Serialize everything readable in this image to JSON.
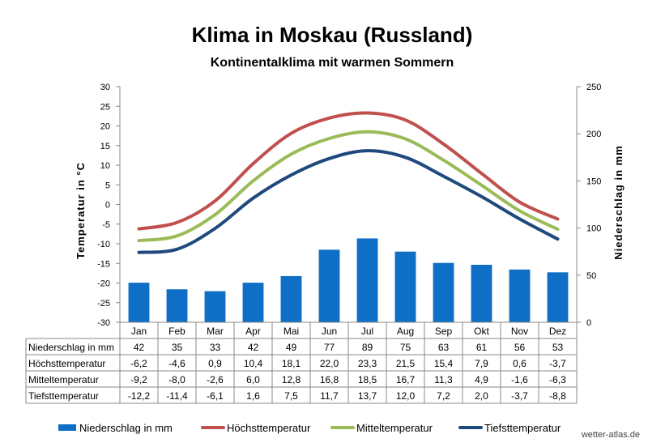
{
  "chart_data": {
    "type": "bar",
    "title": "Klima in Moskau (Russland)",
    "subtitle": "Kontinentalklima mit warmen Sommern",
    "ylabel_left": "Temperatur  in  °C",
    "ylabel_right": "Niederschlag  in  mm",
    "ylim_left": [
      -30,
      30
    ],
    "yticks_left": [
      "30",
      "25",
      "20",
      "15",
      "10",
      "5",
      "0",
      "-5",
      "-10",
      "-15",
      "-20",
      "-25",
      "-30"
    ],
    "ylim_right": [
      0,
      250
    ],
    "yticks_right": [
      "250",
      "200",
      "150",
      "100",
      "50",
      "0"
    ],
    "grid": false,
    "legend_position": "bottom",
    "categories": [
      "Jan",
      "Feb",
      "Mar",
      "Apr",
      "Mai",
      "Jun",
      "Jul",
      "Aug",
      "Sep",
      "Okt",
      "Nov",
      "Dez"
    ],
    "series": [
      {
        "name": "Niederschlag in mm",
        "type": "bar",
        "axis": "right",
        "color": "#0f6fc6",
        "values": [
          42,
          35,
          33,
          42,
          49,
          77,
          89,
          75,
          63,
          61,
          56,
          53
        ],
        "labels": [
          "42",
          "35",
          "33",
          "42",
          "49",
          "77",
          "89",
          "75",
          "63",
          "61",
          "56",
          "53"
        ]
      },
      {
        "name": "Höchsttemperatur",
        "type": "line",
        "axis": "left",
        "color": "#c0504d",
        "values": [
          -6.2,
          -4.6,
          0.9,
          10.4,
          18.1,
          22.0,
          23.3,
          21.5,
          15.4,
          7.9,
          0.6,
          -3.7
        ],
        "labels": [
          "-6,2",
          "-4,6",
          "0,9",
          "10,4",
          "18,1",
          "22,0",
          "23,3",
          "21,5",
          "15,4",
          "7,9",
          "0,6",
          "-3,7"
        ]
      },
      {
        "name": "Mitteltemperatur",
        "type": "line",
        "axis": "left",
        "color": "#9bbb59",
        "values": [
          -9.2,
          -8.0,
          -2.6,
          6.0,
          12.8,
          16.8,
          18.5,
          16.7,
          11.3,
          4.9,
          -1.6,
          -6.3
        ],
        "labels": [
          "-9,2",
          "-8,0",
          "-2,6",
          "6,0",
          "12,8",
          "16,8",
          "18,5",
          "16,7",
          "11,3",
          "4,9",
          "-1,6",
          "-6,3"
        ]
      },
      {
        "name": "Tiefsttemperatur",
        "type": "line",
        "axis": "left",
        "color": "#1f497d",
        "values": [
          -12.2,
          -11.4,
          -6.1,
          1.6,
          7.5,
          11.7,
          13.7,
          12.0,
          7.2,
          2.0,
          -3.7,
          -8.8
        ],
        "labels": [
          "-12,2",
          "-11,4",
          "-6,1",
          "1,6",
          "7,5",
          "11,7",
          "13,7",
          "12,0",
          "7,2",
          "2,0",
          "-3,7",
          "-8,8"
        ]
      }
    ]
  },
  "watermark": "wetter-atlas.de"
}
